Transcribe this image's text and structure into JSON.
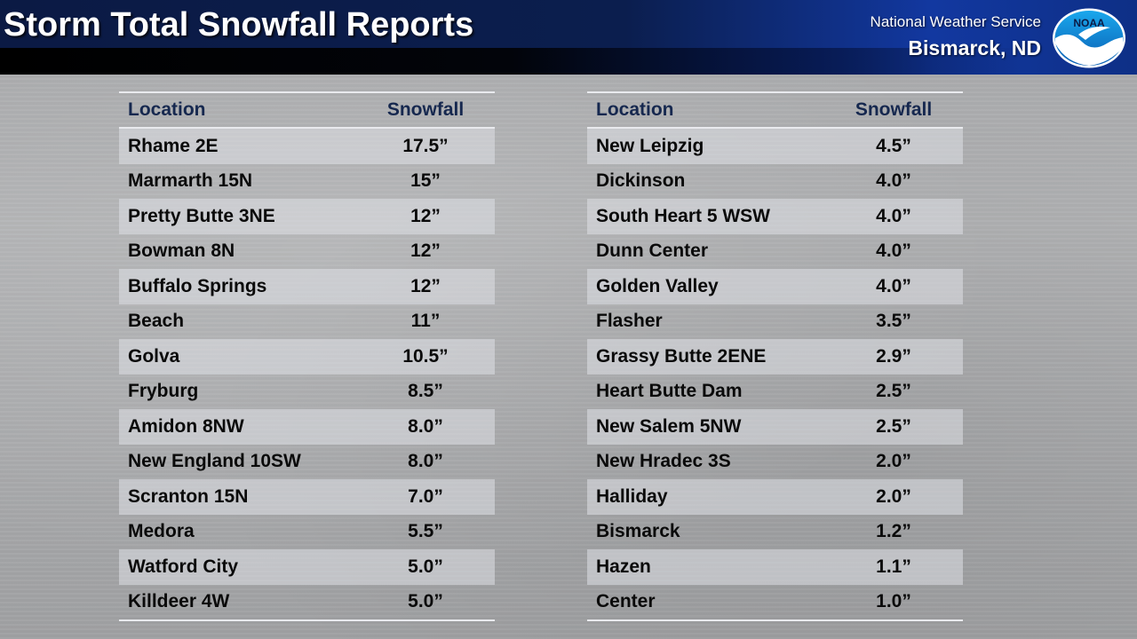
{
  "header": {
    "title": "Storm Total Snowfall Reports",
    "organization": "National Weather Service",
    "office": "Bismarck, ND",
    "logo_text": "NOAA"
  },
  "colors": {
    "header_dark": "#0b1a44",
    "header_accent": "#1238a0",
    "table_header_text": "#16284f",
    "row_shade": "#dee0e6"
  },
  "table_left": {
    "col_location": "Location",
    "col_snowfall": "Snowfall",
    "rows": [
      {
        "location": "Rhame 2E",
        "snowfall": "17.5”"
      },
      {
        "location": "Marmarth 15N",
        "snowfall": "15”"
      },
      {
        "location": "Pretty Butte 3NE",
        "snowfall": "12”"
      },
      {
        "location": "Bowman 8N",
        "snowfall": "12”"
      },
      {
        "location": "Buffalo Springs",
        "snowfall": "12”"
      },
      {
        "location": "Beach",
        "snowfall": "11”"
      },
      {
        "location": "Golva",
        "snowfall": "10.5”"
      },
      {
        "location": "Fryburg",
        "snowfall": "8.5”"
      },
      {
        "location": "Amidon 8NW",
        "snowfall": "8.0”"
      },
      {
        "location": "New England 10SW",
        "snowfall": "8.0”"
      },
      {
        "location": "Scranton 15N",
        "snowfall": "7.0”"
      },
      {
        "location": "Medora",
        "snowfall": "5.5”"
      },
      {
        "location": "Watford City",
        "snowfall": "5.0”"
      },
      {
        "location": "Killdeer 4W",
        "snowfall": "5.0”"
      }
    ]
  },
  "table_right": {
    "col_location": "Location",
    "col_snowfall": "Snowfall",
    "rows": [
      {
        "location": "New Leipzig",
        "snowfall": "4.5”"
      },
      {
        "location": "Dickinson",
        "snowfall": "4.0”"
      },
      {
        "location": "South Heart 5 WSW",
        "snowfall": "4.0”"
      },
      {
        "location": "Dunn Center",
        "snowfall": "4.0”"
      },
      {
        "location": "Golden Valley",
        "snowfall": "4.0”"
      },
      {
        "location": "Flasher",
        "snowfall": "3.5”"
      },
      {
        "location": "Grassy Butte 2ENE",
        "snowfall": "2.9”"
      },
      {
        "location": "Heart Butte Dam",
        "snowfall": "2.5”"
      },
      {
        "location": "New Salem 5NW",
        "snowfall": "2.5”"
      },
      {
        "location": "New Hradec 3S",
        "snowfall": "2.0”"
      },
      {
        "location": "Halliday",
        "snowfall": "2.0”"
      },
      {
        "location": "Bismarck",
        "snowfall": "1.2”"
      },
      {
        "location": "Hazen",
        "snowfall": "1.1”"
      },
      {
        "location": "Center",
        "snowfall": "1.0”"
      }
    ]
  }
}
